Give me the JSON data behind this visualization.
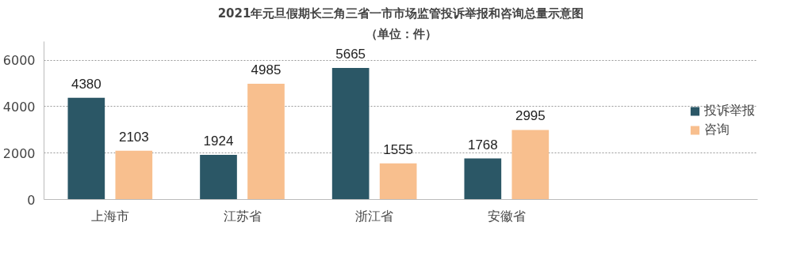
{
  "chart_data": {
    "type": "bar",
    "title": "2021年元旦假期长三角三省一市市场监管投诉举报和咨询总量示意图",
    "subtitle": "（单位：件）",
    "categories": [
      "上海市",
      "江苏省",
      "浙江省",
      "安徽省"
    ],
    "series": [
      {
        "name": "投诉举报",
        "color": "#2b5766",
        "values": [
          4380,
          1924,
          5665,
          1768
        ]
      },
      {
        "name": "咨询",
        "color": "#f8bf8e",
        "values": [
          2103,
          4985,
          1555,
          2995
        ]
      }
    ],
    "ylim": [
      0,
      6800
    ],
    "yticks": [
      0,
      2000,
      4000,
      6000
    ],
    "grid": "y",
    "legend": "right",
    "data_labels": true
  }
}
